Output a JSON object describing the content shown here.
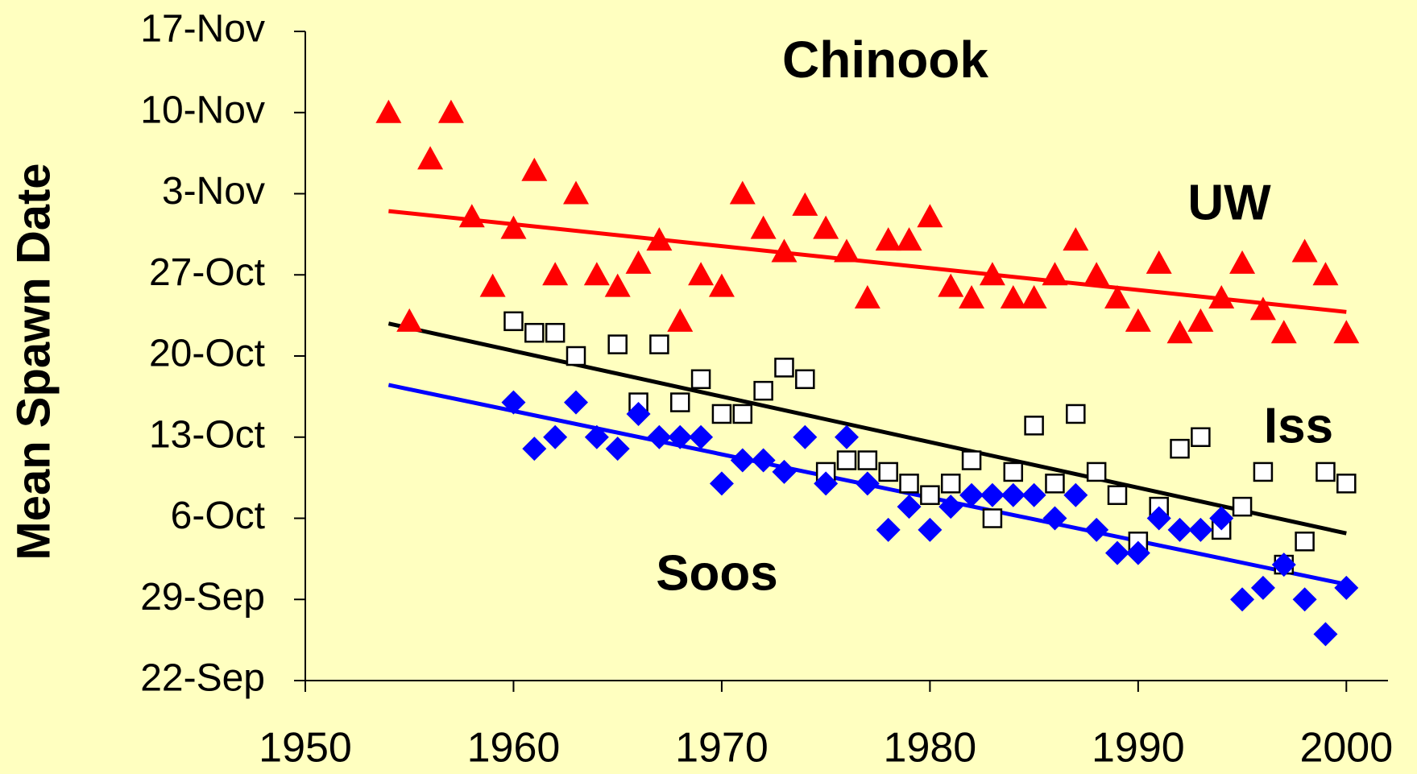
{
  "chart_data": {
    "type": "scatter",
    "title": "Chinook",
    "y_label": "Mean Spawn Date",
    "xlim": [
      1950,
      2002
    ],
    "xticks": [
      1950,
      1960,
      1970,
      1980,
      1990,
      2000
    ],
    "ylim": [
      265,
      321
    ],
    "yticks": [
      {
        "value": 265,
        "label": "22-Sep"
      },
      {
        "value": 272,
        "label": "29-Sep"
      },
      {
        "value": 279,
        "label": "6-Oct"
      },
      {
        "value": 286,
        "label": "13-Oct"
      },
      {
        "value": 293,
        "label": "20-Oct"
      },
      {
        "value": 300,
        "label": "27-Oct"
      },
      {
        "value": 307,
        "label": "3-Nov"
      },
      {
        "value": 314,
        "label": "10-Nov"
      },
      {
        "value": 321,
        "label": "17-Nov"
      }
    ],
    "series": [
      {
        "name": "UW",
        "color": "#ff0000",
        "marker": "triangle",
        "x": [
          1954,
          1955,
          1956,
          1957,
          1958,
          1959,
          1960,
          1961,
          1962,
          1963,
          1964,
          1965,
          1966,
          1967,
          1968,
          1969,
          1970,
          1971,
          1972,
          1973,
          1974,
          1975,
          1976,
          1977,
          1978,
          1979,
          1980,
          1981,
          1982,
          1983,
          1984,
          1985,
          1986,
          1987,
          1988,
          1989,
          1990,
          1991,
          1992,
          1993,
          1994,
          1995,
          1996,
          1997,
          1998,
          1999,
          2000
        ],
        "values": [
          314,
          296,
          310,
          314,
          305,
          299,
          304,
          309,
          300,
          307,
          300,
          299,
          301,
          303,
          296,
          300,
          299,
          307,
          304,
          302,
          306,
          304,
          302,
          298,
          303,
          303,
          305,
          299,
          298,
          300,
          298,
          298,
          300,
          303,
          300,
          298,
          296,
          301,
          295,
          296,
          298,
          301,
          297,
          295,
          302,
          300,
          295
        ],
        "trend": {
          "x": [
            1954,
            2000
          ],
          "values": [
            305.5,
            296.8
          ]
        }
      },
      {
        "name": "Iss",
        "color": "#000000",
        "marker": "square",
        "x": [
          1960,
          1961,
          1962,
          1963,
          1965,
          1966,
          1967,
          1968,
          1969,
          1970,
          1971,
          1972,
          1973,
          1974,
          1975,
          1976,
          1977,
          1978,
          1979,
          1980,
          1981,
          1982,
          1983,
          1984,
          1985,
          1986,
          1987,
          1988,
          1989,
          1990,
          1991,
          1992,
          1993,
          1994,
          1995,
          1996,
          1997,
          1998,
          1999,
          2000
        ],
        "values": [
          296,
          295,
          295,
          293,
          294,
          289,
          294,
          289,
          291,
          288,
          288,
          290,
          292,
          291,
          283,
          284,
          284,
          283,
          282,
          281,
          282,
          284,
          279,
          283,
          287,
          282,
          288,
          283,
          281,
          277,
          280,
          285,
          286,
          278,
          280,
          283,
          275,
          277,
          283,
          282
        ],
        "trend": {
          "x": [
            1954,
            2000
          ],
          "values": [
            295.8,
            277.7
          ]
        }
      },
      {
        "name": "Soos",
        "color": "#0000ff",
        "marker": "diamond",
        "x": [
          1960,
          1961,
          1962,
          1963,
          1964,
          1965,
          1966,
          1967,
          1968,
          1969,
          1970,
          1971,
          1972,
          1973,
          1974,
          1975,
          1976,
          1977,
          1978,
          1979,
          1980,
          1981,
          1982,
          1983,
          1984,
          1985,
          1986,
          1987,
          1988,
          1989,
          1990,
          1991,
          1992,
          1993,
          1994,
          1995,
          1996,
          1997,
          1998,
          1999,
          2000
        ],
        "values": [
          289,
          285,
          286,
          289,
          286,
          285,
          288,
          286,
          286,
          286,
          282,
          284,
          284,
          283,
          286,
          282,
          286,
          282,
          278,
          280,
          278,
          280,
          281,
          281,
          281,
          281,
          279,
          281,
          278,
          276,
          276,
          279,
          278,
          278,
          279,
          272,
          273,
          275,
          272,
          269,
          273
        ],
        "trend": {
          "x": [
            1954,
            2000
          ],
          "values": [
            290.5,
            273.3
          ]
        }
      }
    ]
  }
}
